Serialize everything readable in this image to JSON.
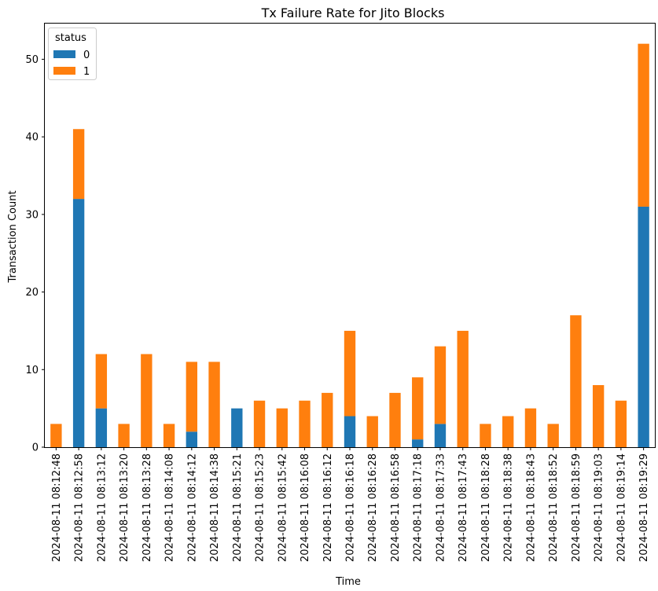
{
  "chart_data": {
    "type": "bar",
    "stacked": true,
    "title": "Tx Failure Rate for Jito Blocks",
    "xlabel": "Time",
    "ylabel": "Transaction Count",
    "ylim": [
      0,
      54.6
    ],
    "yticks": [
      0,
      10,
      20,
      30,
      40,
      50
    ],
    "grid": false,
    "legend": {
      "title": "status",
      "placement": "top-left"
    },
    "categories": [
      "2024-08-11 08:12:48",
      "2024-08-11 08:12:58",
      "2024-08-11 08:13:12",
      "2024-08-11 08:13:20",
      "2024-08-11 08:13:28",
      "2024-08-11 08:14:08",
      "2024-08-11 08:14:12",
      "2024-08-11 08:14:38",
      "2024-08-11 08:15:21",
      "2024-08-11 08:15:23",
      "2024-08-11 08:15:42",
      "2024-08-11 08:16:08",
      "2024-08-11 08:16:12",
      "2024-08-11 08:16:18",
      "2024-08-11 08:16:28",
      "2024-08-11 08:16:58",
      "2024-08-11 08:17:18",
      "2024-08-11 08:17:33",
      "2024-08-11 08:17:43",
      "2024-08-11 08:18:28",
      "2024-08-11 08:18:38",
      "2024-08-11 08:18:43",
      "2024-08-11 08:18:52",
      "2024-08-11 08:18:59",
      "2024-08-11 08:19:03",
      "2024-08-11 08:19:14",
      "2024-08-11 08:19:29"
    ],
    "series": [
      {
        "name": "0",
        "color": "#1f77b4",
        "values": [
          0,
          32,
          5,
          0,
          0,
          0,
          2,
          0,
          5,
          0,
          0,
          0,
          0,
          4,
          0,
          0,
          1,
          3,
          0,
          0,
          0,
          0,
          0,
          0,
          0,
          0,
          31
        ]
      },
      {
        "name": "1",
        "color": "#ff7f0e",
        "values": [
          3,
          9,
          7,
          3,
          12,
          3,
          9,
          11,
          0,
          6,
          5,
          6,
          7,
          11,
          4,
          7,
          8,
          10,
          15,
          3,
          4,
          5,
          3,
          17,
          8,
          6,
          21
        ]
      }
    ]
  }
}
